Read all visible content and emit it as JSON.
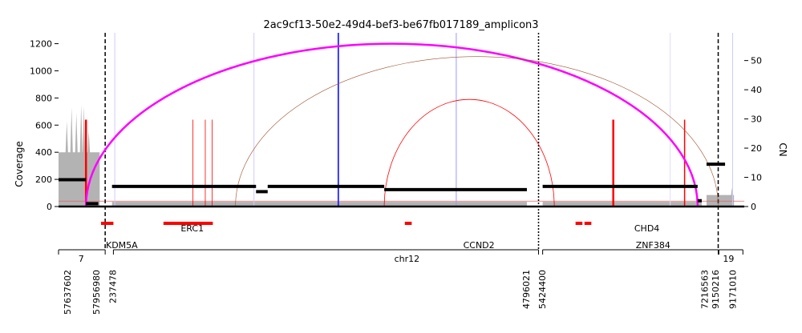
{
  "chart_data": {
    "type": "amplicon_structure",
    "title": "2ac9cf13-50e2-49d4-bef3-be67fb017189_amplicon3",
    "ylabel_left": "Coverage",
    "ylabel_right": "CN",
    "y_left": {
      "lim": [
        0,
        1280
      ],
      "ticks": [
        0,
        200,
        400,
        600,
        800,
        1000,
        1200
      ]
    },
    "y_right": {
      "lim": [
        0,
        59.5
      ],
      "ticks": [
        0,
        10,
        20,
        30,
        40,
        50
      ]
    },
    "chromosome_labels": [
      "7",
      "chr12",
      "19"
    ],
    "position_labels": [
      "57637602",
      "57956980",
      "237478",
      "4796021",
      "5424400",
      "7216563",
      "9150216",
      "9171010"
    ],
    "genes": [
      {
        "name": "KDM5A",
        "segments": [
          [
            0.062,
            0.08
          ]
        ]
      },
      {
        "name": "ERC1",
        "segments": [
          [
            0.153,
            0.225
          ]
        ]
      },
      {
        "name": "CCND2",
        "segments": [
          [
            0.505,
            0.515
          ]
        ]
      },
      {
        "name": "CHD4",
        "segments": [
          [
            0.754,
            0.764
          ],
          [
            0.767,
            0.777
          ]
        ]
      },
      {
        "name": "ZNF384",
        "segments": []
      }
    ],
    "copy_number_segments": [
      {
        "x": [
          0.0,
          0.04
        ],
        "cn": 9.2
      },
      {
        "x": [
          0.04,
          0.058
        ],
        "cn": 1.0
      },
      {
        "x": [
          0.078,
          0.288
        ],
        "cn": 6.9
      },
      {
        "x": [
          0.288,
          0.305
        ],
        "cn": 5.1
      },
      {
        "x": [
          0.305,
          0.475
        ],
        "cn": 6.9
      },
      {
        "x": [
          0.475,
          0.683
        ],
        "cn": 5.8
      },
      {
        "x": [
          0.706,
          0.932
        ],
        "cn": 6.9
      },
      {
        "x": [
          0.932,
          0.938
        ],
        "cn": 2.0
      },
      {
        "x": [
          0.945,
          0.972
        ],
        "cn": 14.5
      }
    ],
    "breakpoint_arcs": [
      {
        "x1": 0.04,
        "x2": 0.932,
        "height": 1200,
        "color": "#ff00ff",
        "width": 2.5
      },
      {
        "x1": 0.258,
        "x2": 0.962,
        "height": 1105,
        "color": "#a0522d",
        "width": 0.6
      },
      {
        "x1": 0.475,
        "x2": 0.723,
        "height": 790,
        "color": "#ff0000",
        "width": 0.8
      }
    ],
    "breakpoint_lines": [
      {
        "x": 0.04,
        "height": 640,
        "color": "#ff0000",
        "width": 2.5
      },
      {
        "x": 0.196,
        "height": 640,
        "color": "#ff0000",
        "width": 0.8
      },
      {
        "x": 0.214,
        "height": 640,
        "color": "#ff0000",
        "width": 0.8
      },
      {
        "x": 0.224,
        "height": 640,
        "color": "#ff0000",
        "width": 0.8
      },
      {
        "x": 0.809,
        "height": 640,
        "color": "#ff0000",
        "width": 2.5
      },
      {
        "x": 0.913,
        "height": 640,
        "color": "#ff0000",
        "width": 1.5
      },
      {
        "x": 0.408,
        "height": 1280,
        "color": "#2222ff",
        "width": 1.8
      },
      {
        "x": 0.285,
        "height": 1280,
        "color": "#ccccff",
        "width": 1
      },
      {
        "x": 0.58,
        "height": 1280,
        "color": "#9999ff",
        "width": 1
      },
      {
        "x": 0.082,
        "height": 1280,
        "color": "#ccccff",
        "width": 1
      },
      {
        "x": 0.892,
        "height": 1280,
        "color": "#ddddff",
        "width": 1
      },
      {
        "x": 0.983,
        "height": 1280,
        "color": "#ccccff",
        "width": 1
      }
    ],
    "region_boundaries": [
      {
        "x": 0.068,
        "style": "dashed"
      },
      {
        "x": 0.7,
        "style": "dotted"
      },
      {
        "x": 0.962,
        "style": "dashed"
      }
    ],
    "coverage": [
      {
        "x": [
          0.0,
          0.06
        ],
        "level": 400,
        "peaks": [
          [
            0.012,
            630
          ],
          [
            0.019,
            730
          ],
          [
            0.026,
            690
          ],
          [
            0.033,
            750
          ],
          [
            0.037,
            740
          ],
          [
            0.044,
            560
          ]
        ]
      },
      {
        "x": [
          0.078,
          0.683
        ],
        "level": 35,
        "peaks": []
      },
      {
        "x": [
          0.706,
          0.938
        ],
        "level": 35,
        "peaks": []
      },
      {
        "x": [
          0.945,
          0.985
        ],
        "level": 85,
        "peaks": [
          [
            0.982,
            140
          ]
        ]
      }
    ],
    "grid": false
  },
  "colors": {
    "coverage": "#b3b3b3",
    "cn": "#000000",
    "gene": "#ff0000",
    "baseline_red": "#e06666"
  }
}
